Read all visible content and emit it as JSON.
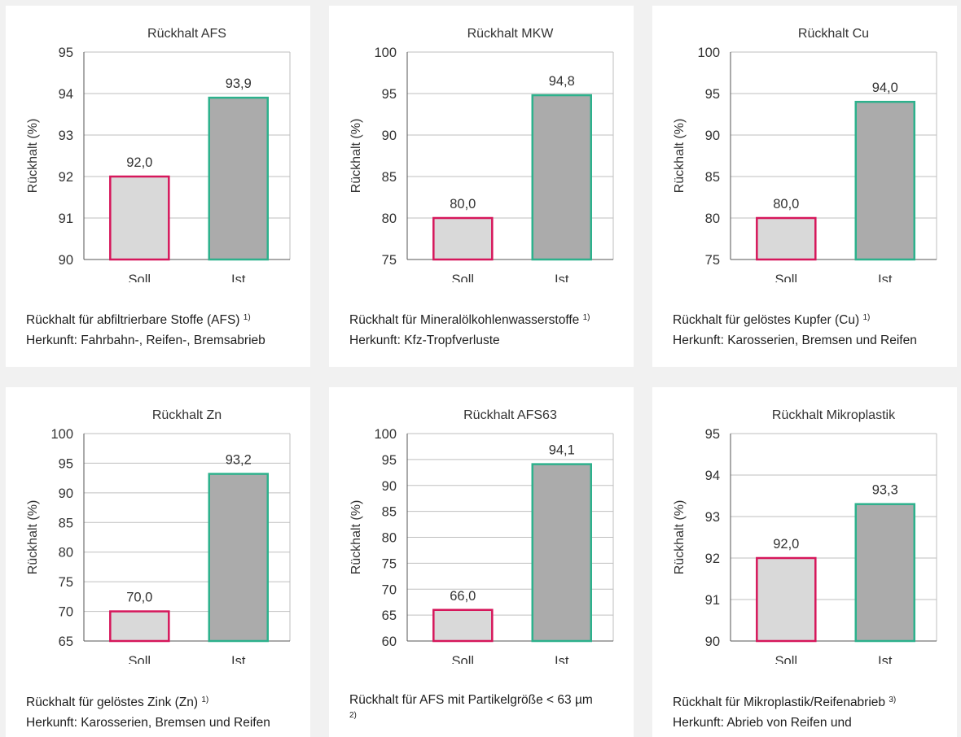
{
  "colors": {
    "soll_fill": "#d9d9d9",
    "soll_border": "#d6175b",
    "ist_fill": "#ababab",
    "ist_border": "#2db18c",
    "grid": "#bfbfbf",
    "axis": "#555555"
  },
  "chart_data": [
    {
      "type": "bar",
      "title": "Rückhalt AFS",
      "ylabel": "Rückhalt (%)",
      "xlabel": "",
      "ylim": [
        90,
        95
      ],
      "yticks": [
        "90",
        "91",
        "92",
        "93",
        "94",
        "95"
      ],
      "categories": [
        "Soll",
        "Ist"
      ],
      "values": [
        92.0,
        93.9
      ],
      "value_labels": [
        "92,0",
        "93,9"
      ],
      "grid": true,
      "caption": {
        "line1": "Rückhalt für abfiltrierbare Stoffe (AFS)",
        "sup": "1)",
        "line2": "Herkunft: Fahrbahn-, Reifen-, Bremsabrieb"
      }
    },
    {
      "type": "bar",
      "title": "Rückhalt MKW",
      "ylabel": "Rückhalt (%)",
      "xlabel": "",
      "ylim": [
        75,
        100
      ],
      "yticks": [
        "75",
        "80",
        "85",
        "90",
        "95",
        "100"
      ],
      "categories": [
        "Soll",
        "Ist"
      ],
      "values": [
        80.0,
        94.8
      ],
      "value_labels": [
        "80,0",
        "94,8"
      ],
      "grid": true,
      "caption": {
        "line1": "Rückhalt für Mineralölkohlenwasserstoffe",
        "sup": "1)",
        "line2": "Herkunft: Kfz-Tropfverluste"
      }
    },
    {
      "type": "bar",
      "title": "Rückhalt Cu",
      "ylabel": "Rückhalt (%)",
      "xlabel": "",
      "ylim": [
        75,
        100
      ],
      "yticks": [
        "75",
        "80",
        "85",
        "90",
        "95",
        "100"
      ],
      "categories": [
        "Soll",
        "Ist"
      ],
      "values": [
        80.0,
        94.0
      ],
      "value_labels": [
        "80,0",
        "94,0"
      ],
      "grid": true,
      "caption": {
        "line1": "Rückhalt für gelöstes Kupfer (Cu)",
        "sup": "1)",
        "line2": "Herkunft: Karosserien, Bremsen und Reifen"
      }
    },
    {
      "type": "bar",
      "title": "Rückhalt Zn",
      "ylabel": "Rückhalt (%)",
      "xlabel": "",
      "ylim": [
        65,
        100
      ],
      "yticks": [
        "65",
        "70",
        "75",
        "80",
        "85",
        "90",
        "95",
        "100"
      ],
      "categories": [
        "Soll",
        "Ist"
      ],
      "values": [
        70.0,
        93.2
      ],
      "value_labels": [
        "70,0",
        "93,2"
      ],
      "grid": true,
      "caption": {
        "line1": "Rückhalt für gelöstes Zink (Zn)",
        "sup": "1)",
        "line2": "Herkunft: Karosserien, Bremsen und Reifen"
      }
    },
    {
      "type": "bar",
      "title": "Rückhalt AFS63",
      "ylabel": "Rückhalt (%)",
      "xlabel": "",
      "ylim": [
        60,
        100
      ],
      "yticks": [
        "60",
        "65",
        "70",
        "75",
        "80",
        "85",
        "90",
        "95",
        "100"
      ],
      "categories": [
        "Soll",
        "Ist"
      ],
      "values": [
        66.0,
        94.1
      ],
      "value_labels": [
        "66,0",
        "94,1"
      ],
      "grid": true,
      "caption": {
        "line1": "Rückhalt für AFS mit Partikelgröße < 63 µm",
        "sup": "2)",
        "line2": ""
      }
    },
    {
      "type": "bar",
      "title": "Rückhalt Mikroplastik",
      "ylabel": "Rückhalt (%)",
      "xlabel": "",
      "ylim": [
        90,
        95
      ],
      "yticks": [
        "90",
        "91",
        "92",
        "93",
        "94",
        "95"
      ],
      "categories": [
        "Soll",
        "Ist"
      ],
      "values": [
        92.0,
        93.3
      ],
      "value_labels": [
        "92,0",
        "93,3"
      ],
      "grid": true,
      "caption": {
        "line1": "Rückhalt für Mikroplastik/Reifenabrieb",
        "sup": "3)",
        "line2": "Herkunft: Abrieb von Reifen und"
      }
    }
  ]
}
